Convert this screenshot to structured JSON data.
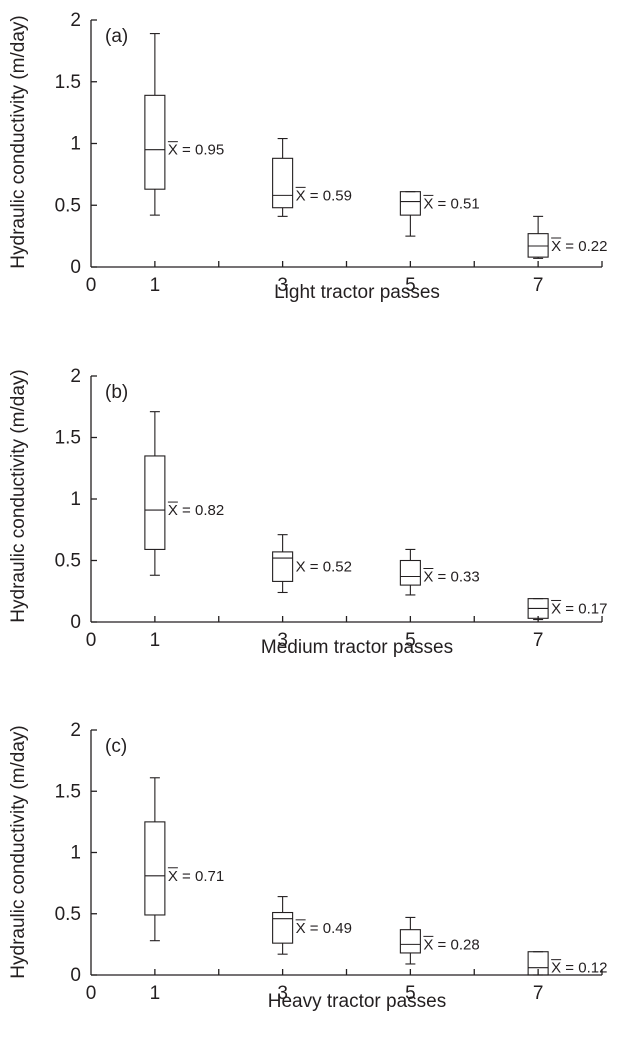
{
  "chart_data": [
    {
      "type": "box",
      "panel_label": "(a)",
      "xlabel": "Light tractor passes",
      "ylabel": "Hydraulic conductivity (m/day)",
      "xlim": [
        0,
        8
      ],
      "ylim": [
        0,
        2
      ],
      "x_ticks": [
        0,
        1,
        3,
        5,
        7
      ],
      "y_ticks": [
        0,
        0.5,
        1,
        1.5,
        2
      ],
      "grid": false,
      "boxes": [
        {
          "x": 1,
          "whisker_low": 0.42,
          "q1": 0.63,
          "median": 0.95,
          "q3": 1.39,
          "whisker_high": 1.89,
          "mean_label": "X = 0.95",
          "mean_bar": true
        },
        {
          "x": 3,
          "whisker_low": 0.41,
          "q1": 0.48,
          "median": 0.58,
          "q3": 0.88,
          "whisker_high": 1.04,
          "mean_label": "X = 0.59",
          "mean_bar": true
        },
        {
          "x": 5,
          "whisker_low": 0.25,
          "q1": 0.42,
          "median": 0.53,
          "q3": 0.61,
          "whisker_high": 0.61,
          "mean_label": "X = 0.51",
          "mean_bar": true
        },
        {
          "x": 7,
          "whisker_low": 0.07,
          "q1": 0.08,
          "median": 0.17,
          "q3": 0.27,
          "whisker_high": 0.41,
          "mean_label": "X = 0.22",
          "mean_bar": true
        }
      ]
    },
    {
      "type": "box",
      "panel_label": "(b)",
      "xlabel": "Medium tractor passes",
      "ylabel": "Hydraulic conductivity (m/day)",
      "xlim": [
        0,
        8
      ],
      "ylim": [
        0,
        2
      ],
      "x_ticks": [
        0,
        1,
        3,
        5,
        7
      ],
      "y_ticks": [
        0,
        0.5,
        1,
        1.5,
        2
      ],
      "grid": false,
      "boxes": [
        {
          "x": 1,
          "whisker_low": 0.38,
          "q1": 0.59,
          "median": 0.91,
          "q3": 1.35,
          "whisker_high": 1.71,
          "mean_label": "X = 0.82",
          "mean_bar": true
        },
        {
          "x": 3,
          "whisker_low": 0.24,
          "q1": 0.33,
          "median": 0.52,
          "q3": 0.57,
          "whisker_high": 0.71,
          "mean_label": "X = 0.52",
          "mean_bar": false
        },
        {
          "x": 5,
          "whisker_low": 0.22,
          "q1": 0.3,
          "median": 0.37,
          "q3": 0.5,
          "whisker_high": 0.59,
          "mean_label": "X = 0.33",
          "mean_bar": true
        },
        {
          "x": 7,
          "whisker_low": 0.02,
          "q1": 0.03,
          "median": 0.11,
          "q3": 0.19,
          "whisker_high": 0.19,
          "mean_label": "X = 0.17",
          "mean_bar": true
        }
      ]
    },
    {
      "type": "box",
      "panel_label": "(c)",
      "xlabel": "Heavy tractor passes",
      "ylabel": "Hydraulic conductivity (m/day)",
      "xlim": [
        0,
        8
      ],
      "ylim": [
        0,
        2
      ],
      "x_ticks": [
        0,
        1,
        3,
        5,
        7
      ],
      "y_ticks": [
        0,
        0.5,
        1,
        1.5,
        2
      ],
      "grid": false,
      "boxes": [
        {
          "x": 1,
          "whisker_low": 0.28,
          "q1": 0.49,
          "median": 0.81,
          "q3": 1.25,
          "whisker_high": 1.61,
          "mean_label": "X = 0.71",
          "mean_bar": true
        },
        {
          "x": 3,
          "whisker_low": 0.17,
          "q1": 0.26,
          "median": 0.46,
          "q3": 0.51,
          "whisker_high": 0.64,
          "mean_label": "X = 0.49",
          "mean_bar": true
        },
        {
          "x": 5,
          "whisker_low": 0.09,
          "q1": 0.18,
          "median": 0.25,
          "q3": 0.37,
          "whisker_high": 0.47,
          "mean_label": "X = 0.28",
          "mean_bar": true
        },
        {
          "x": 7,
          "whisker_low": 0.0,
          "q1": 0.0,
          "median": 0.06,
          "q3": 0.19,
          "whisker_high": 0.19,
          "mean_label": "X = 0.12",
          "mean_bar": true
        }
      ]
    }
  ]
}
